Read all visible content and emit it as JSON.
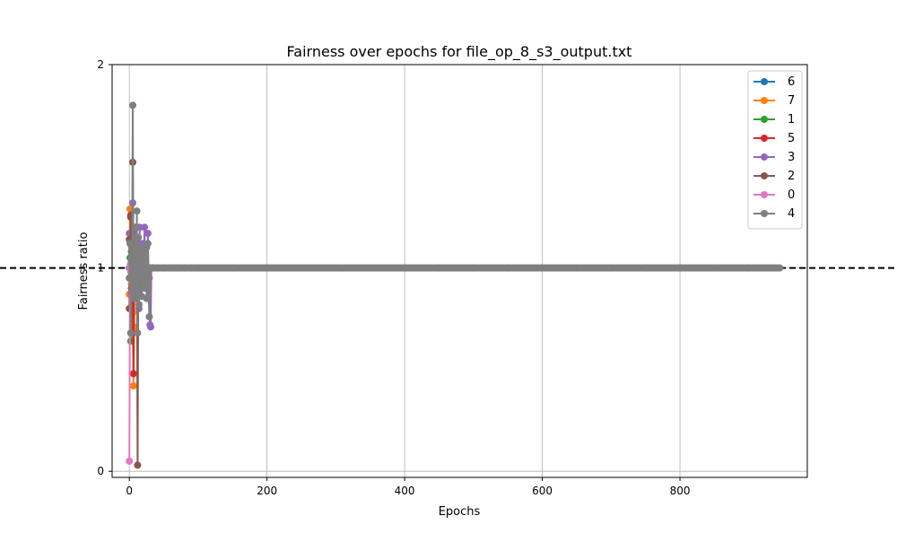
{
  "chart_data": {
    "type": "line",
    "title": "Fairness over epochs for file_op_8_s3_output.txt",
    "xlabel": "Epochs",
    "ylabel": "Fairness ratio",
    "xlim": [
      -25,
      985
    ],
    "ylim": [
      -0.03,
      2.0
    ],
    "xticks": [
      0,
      200,
      400,
      600,
      800
    ],
    "yticks": [
      0,
      1,
      2
    ],
    "grid": true,
    "legend_position": "top-right",
    "reference_line": {
      "y": 1,
      "style": "dashed",
      "color": "#000000"
    },
    "series": [
      {
        "name": "6",
        "color": "#1f77b4",
        "x": [
          0,
          1,
          2,
          3,
          4,
          5,
          6,
          7,
          8,
          9,
          10,
          11,
          12,
          13,
          14,
          15,
          16,
          17,
          18,
          19,
          20,
          21,
          22,
          23,
          24,
          25,
          26,
          27,
          28,
          29,
          30,
          31,
          32,
          33,
          35
        ],
        "y": [
          1.0,
          0.95,
          1.05,
          0.98,
          1.02,
          1.1,
          0.92,
          1.06,
          0.97,
          1.03,
          0.99,
          1.01,
          1.04,
          0.96,
          1.0,
          1.02,
          0.98,
          1.0,
          1.0,
          1.0,
          1.0,
          1.0,
          1.0,
          1.0,
          1.0,
          1.0,
          1.0,
          1.0,
          1.0,
          1.0,
          1.0,
          1.0,
          1.0,
          1.0,
          1.0
        ]
      },
      {
        "name": "7",
        "color": "#ff7f0e",
        "x": [
          0,
          1,
          2,
          3,
          4,
          5,
          6,
          7,
          8,
          9,
          10,
          11,
          12,
          13,
          14,
          15,
          16,
          17,
          18,
          19,
          20,
          22,
          24,
          26,
          28,
          30
        ],
        "y": [
          0.87,
          1.29,
          1.05,
          0.92,
          1.15,
          0.78,
          0.42,
          0.71,
          1.1,
          0.95,
          1.02,
          0.98,
          1.0,
          1.03,
          0.97,
          1.0,
          1.01,
          1.0,
          1.0,
          1.0,
          1.0,
          1.0,
          1.0,
          1.0,
          1.0,
          1.0
        ]
      },
      {
        "name": "1",
        "color": "#2ca02c",
        "x": [
          0,
          1,
          2,
          3,
          4,
          5,
          6,
          7,
          8,
          9,
          10,
          12,
          14,
          16,
          18,
          20,
          22,
          24,
          26,
          28,
          30
        ],
        "y": [
          0.95,
          1.05,
          0.64,
          1.08,
          0.9,
          1.02,
          0.96,
          1.0,
          1.03,
          0.98,
          1.0,
          1.0,
          1.0,
          1.0,
          1.0,
          1.0,
          1.0,
          1.0,
          1.0,
          1.0,
          1.0
        ]
      },
      {
        "name": "5",
        "color": "#d62728",
        "x": [
          0,
          1,
          2,
          3,
          4,
          5,
          6,
          7,
          8,
          9,
          10,
          11,
          12,
          13,
          14,
          16,
          18,
          20,
          22,
          24,
          26,
          28,
          30
        ],
        "y": [
          0.8,
          1.0,
          1.25,
          0.9,
          1.1,
          0.85,
          0.48,
          1.2,
          0.95,
          1.05,
          1.0,
          0.9,
          1.1,
          0.97,
          1.0,
          1.02,
          0.98,
          1.0,
          1.0,
          1.0,
          1.0,
          1.0,
          1.0
        ]
      },
      {
        "name": "3",
        "color": "#9467bd",
        "x": [
          0,
          1,
          2,
          3,
          4,
          5,
          6,
          7,
          8,
          9,
          10,
          11,
          12,
          13,
          14,
          15,
          16,
          17,
          18,
          19,
          20,
          21,
          22,
          23,
          24,
          25,
          26,
          27,
          28,
          29,
          30,
          31,
          32
        ],
        "y": [
          1.17,
          0.95,
          1.02,
          0.88,
          1.1,
          1.32,
          0.85,
          1.05,
          0.92,
          1.15,
          0.95,
          1.08,
          0.88,
          1.1,
          0.8,
          1.2,
          0.9,
          1.05,
          0.86,
          1.12,
          0.95,
          1.0,
          1.2,
          0.92,
          1.1,
          0.85,
          1.0,
          1.17,
          0.91,
          0.95,
          0.72,
          0.71,
          1.0
        ]
      },
      {
        "name": "2",
        "color": "#8c564b",
        "x": [
          0,
          1,
          2,
          3,
          4,
          5,
          6,
          7,
          8,
          9,
          10,
          11,
          12,
          13,
          14,
          15,
          16,
          17,
          18,
          19,
          20,
          22,
          24,
          26,
          28,
          30
        ],
        "y": [
          1.14,
          0.8,
          1.26,
          0.95,
          1.05,
          1.52,
          0.9,
          1.1,
          0.85,
          1.02,
          0.95,
          1.08,
          0.03,
          1.0,
          0.92,
          1.05,
          0.98,
          1.0,
          1.02,
          0.99,
          1.0,
          1.0,
          1.0,
          1.0,
          1.0,
          1.0
        ]
      },
      {
        "name": "0",
        "color": "#e377c2",
        "x": [
          0,
          1,
          2,
          3,
          4,
          5,
          6,
          8,
          10,
          12,
          14,
          16,
          18,
          20
        ],
        "y": [
          0.05,
          1.0,
          0.98,
          1.02,
          1.0,
          1.0,
          1.0,
          1.0,
          1.0,
          1.0,
          1.0,
          1.0,
          1.0,
          1.0
        ]
      },
      {
        "name": "4",
        "color": "#7f7f7f",
        "x": [
          0,
          1,
          2,
          3,
          4,
          5,
          6,
          7,
          8,
          9,
          10,
          11,
          12,
          13,
          14,
          15,
          16,
          17,
          18,
          19,
          20,
          21,
          22,
          23,
          24,
          25,
          26,
          27,
          28,
          29,
          30,
          31,
          32,
          40,
          50,
          60,
          70,
          80,
          90,
          100,
          150,
          200,
          250,
          300,
          350,
          400,
          450,
          500,
          550,
          600,
          650,
          700,
          750,
          800,
          850,
          900,
          945
        ],
        "y": [
          0.95,
          1.12,
          0.68,
          1.05,
          0.9,
          1.8,
          0.85,
          1.1,
          0.92,
          1.2,
          0.88,
          1.28,
          0.68,
          1.15,
          0.82,
          1.05,
          0.95,
          1.1,
          0.86,
          1.08,
          0.92,
          1.05,
          0.9,
          1.02,
          0.95,
          1.1,
          0.85,
          1.12,
          0.9,
          0.76,
          1.0,
          1.0,
          1.0,
          1.0,
          1.0,
          1.0,
          1.0,
          1.0,
          1.0,
          1.0,
          1.0,
          1.0,
          1.0,
          1.0,
          1.0,
          1.0,
          1.0,
          1.0,
          1.0,
          1.0,
          1.0,
          1.0,
          1.0,
          1.0,
          1.0,
          1.0,
          1.0
        ]
      }
    ]
  }
}
